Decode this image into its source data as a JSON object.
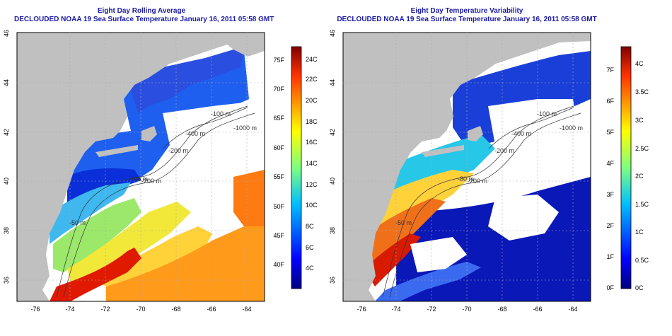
{
  "left_panel": {
    "title_line1": "Eight Day Rolling Average",
    "title_line2": "DECLOUDED NOAA 19 Sea Surface Temperature January 16, 2011 05:58 GMT",
    "colorbar_f_labels": [
      "75F",
      "70F",
      "65F",
      "60F",
      "55F",
      "50F",
      "45F",
      "40F"
    ],
    "colorbar_c_labels": [
      "24C",
      "22C",
      "20C",
      "18C",
      "16C",
      "14C",
      "12C",
      "10C",
      "8C",
      "6C",
      "4C"
    ],
    "contour_labels": [
      "-100 m",
      "-1000 m",
      "-400 m",
      "-200 m",
      "-80 m",
      "-50 m",
      "-200 m"
    ]
  },
  "right_panel": {
    "title_line1": "Eight Day Temperature Variability",
    "title_line2": "DECLOUDED NOAA 19 Sea Surface Temperature January 16, 2011 05:58 GMT",
    "colorbar_f_labels": [
      "7F",
      "6F",
      "5F",
      "4F",
      "3F",
      "2F",
      "1F",
      "0F"
    ],
    "colorbar_c_labels": [
      "4C",
      "3.5C",
      "3C",
      "2.5C",
      "2C",
      "1.5C",
      "1C",
      "0.5C",
      "0C"
    ],
    "contour_labels": [
      "-100 m",
      "-1000 m",
      "-400 m",
      "-200 m",
      "-80 m",
      "-50 m",
      "-200 m"
    ]
  },
  "axes": {
    "x_ticks": [
      "-76",
      "-74",
      "-72",
      "-70",
      "-68",
      "-66",
      "-64"
    ],
    "y_ticks": [
      "46",
      "44",
      "42",
      "40",
      "38",
      "36"
    ]
  },
  "colors": {
    "title": "#1a1aa6",
    "land": "#c0c0c0",
    "ocean_blank": "#ffffff"
  }
}
